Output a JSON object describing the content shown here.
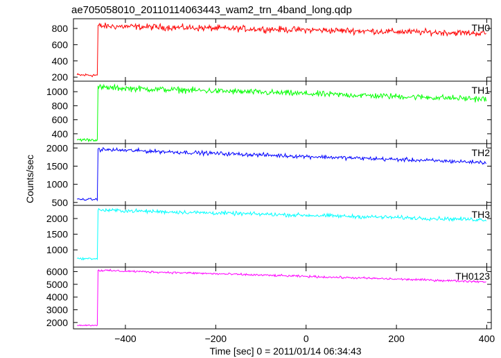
{
  "chart_data": {
    "type": "line",
    "title": "ae705058010_20110114063443_wam2_trn_4band_long.qdp",
    "xlabel": "Time [sec] 0 = 2011/01/14 06:34:43",
    "ylabel": "Counts/sec",
    "xlim": [
      -515,
      410
    ],
    "x_ticks": [
      -400,
      -200,
      0,
      200,
      400
    ],
    "x_tick_labels": [
      "−400",
      "−200",
      "0",
      "200",
      "400"
    ],
    "grid": false,
    "step_time": -462,
    "panels": [
      {
        "name": "TH0",
        "color": "#ff0000",
        "ylim": [
          150,
          920
        ],
        "y_ticks": [
          200,
          400,
          600,
          800
        ],
        "pre_level": 225,
        "pre_noise": 18,
        "post_start": 830,
        "post_end": 740,
        "noise": 32
      },
      {
        "name": "TH1",
        "color": "#00ff00",
        "ylim": [
          260,
          1150
        ],
        "y_ticks": [
          400,
          600,
          800,
          1000
        ],
        "pre_level": 315,
        "pre_noise": 18,
        "post_start": 1060,
        "post_end": 895,
        "noise": 35
      },
      {
        "name": "TH2",
        "color": "#0000ff",
        "ylim": [
          420,
          2120
        ],
        "y_ticks": [
          500,
          1000,
          1500,
          2000
        ],
        "pre_level": 585,
        "pre_noise": 25,
        "post_start": 1960,
        "post_end": 1600,
        "noise": 45
      },
      {
        "name": "TH3",
        "color": "#00ffff",
        "ylim": [
          450,
          2420
        ],
        "y_ticks": [
          1000,
          1500,
          2000
        ],
        "pre_level": 720,
        "pre_noise": 25,
        "post_start": 2270,
        "post_end": 1960,
        "noise": 50
      },
      {
        "name": "TH0123",
        "color": "#ff00ff",
        "ylim": [
          1500,
          6350
        ],
        "y_ticks": [
          2000,
          3000,
          4000,
          5000,
          6000
        ],
        "pre_level": 1780,
        "pre_noise": 40,
        "post_start": 6100,
        "post_end": 5200,
        "noise": 70
      }
    ]
  }
}
